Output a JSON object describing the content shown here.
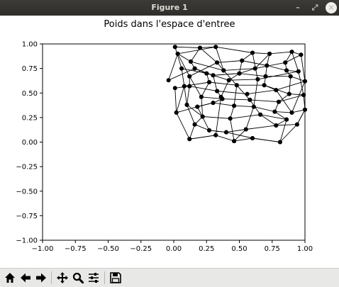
{
  "window": {
    "title": "Figure 1",
    "minimize_icon": "minimize-icon",
    "maximize_icon": "maximize-icon",
    "close_icon": "close-icon"
  },
  "toolbar": {
    "buttons": [
      {
        "name": "home-button",
        "icon": "home-icon"
      },
      {
        "name": "back-button",
        "icon": "arrow-left-icon"
      },
      {
        "name": "forward-button",
        "icon": "arrow-right-icon"
      },
      {
        "name": "pan-button",
        "icon": "move-icon"
      },
      {
        "name": "zoom-button",
        "icon": "zoom-icon"
      },
      {
        "name": "configure-subplots-button",
        "icon": "sliders-icon"
      },
      {
        "name": "save-button",
        "icon": "save-icon"
      }
    ]
  },
  "chart_data": {
    "type": "line",
    "title": "Poids dans l'espace d'entree",
    "xlabel": "",
    "ylabel": "",
    "xlim": [
      -1.0,
      1.0
    ],
    "ylim": [
      -1.0,
      1.0
    ],
    "xticks": [
      "−1.00",
      "−0.75",
      "−0.50",
      "−0.25",
      "0.00",
      "0.25",
      "0.50",
      "0.75",
      "1.00"
    ],
    "yticks": [
      "−1.00",
      "−0.75",
      "−0.50",
      "−0.25",
      "0.00",
      "0.25",
      "0.50",
      "0.75",
      "1.00"
    ],
    "grid": false,
    "line_color": "#000000",
    "marker_color": "#000000",
    "series": [
      {
        "points": [
          [
            0.01,
            0.97
          ],
          [
            0.2,
            0.96
          ],
          [
            0.32,
            0.97
          ],
          [
            0.6,
            0.91
          ],
          [
            0.73,
            0.9
          ],
          [
            0.9,
            0.92
          ],
          [
            0.97,
            0.89
          ],
          [
            0.85,
            0.81
          ],
          [
            0.62,
            0.75
          ],
          [
            0.38,
            0.73
          ],
          [
            0.13,
            0.82
          ],
          [
            0.03,
            0.9
          ],
          [
            -0.04,
            0.63
          ],
          [
            0.16,
            0.75
          ],
          [
            0.3,
            0.68
          ],
          [
            0.5,
            0.7
          ],
          [
            0.7,
            0.67
          ],
          [
            0.89,
            0.67
          ],
          [
            1.0,
            0.62
          ],
          [
            0.78,
            0.53
          ],
          [
            0.56,
            0.49
          ],
          [
            0.33,
            0.52
          ],
          [
            0.12,
            0.57
          ],
          [
            0.01,
            0.55
          ],
          [
            0.02,
            0.3
          ],
          [
            0.18,
            0.36
          ],
          [
            0.3,
            0.4
          ],
          [
            0.46,
            0.37
          ],
          [
            0.61,
            0.36
          ],
          [
            0.77,
            0.31
          ],
          [
            0.9,
            0.3
          ],
          [
            1.0,
            0.33
          ],
          [
            0.94,
            0.18
          ],
          [
            0.78,
            0.17
          ],
          [
            0.55,
            0.13
          ],
          [
            0.4,
            0.1
          ],
          [
            0.27,
            0.12
          ],
          [
            0.16,
            0.18
          ],
          [
            0.12,
            0.03
          ],
          [
            0.32,
            0.07
          ],
          [
            0.46,
            0.01
          ],
          [
            0.6,
            0.04
          ],
          [
            0.81,
            0.0
          ],
          [
            0.86,
            0.23
          ],
          [
            0.66,
            0.28
          ],
          [
            0.43,
            0.24
          ],
          [
            0.22,
            0.26
          ],
          [
            0.1,
            0.38
          ],
          [
            0.08,
            0.57
          ],
          [
            0.27,
            0.61
          ],
          [
            0.48,
            0.58
          ],
          [
            0.69,
            0.58
          ],
          [
            0.88,
            0.49
          ],
          [
            0.99,
            0.48
          ],
          [
            0.8,
            0.41
          ],
          [
            0.58,
            0.43
          ],
          [
            0.37,
            0.44
          ],
          [
            0.21,
            0.46
          ],
          [
            0.12,
            0.67
          ],
          [
            0.33,
            0.81
          ],
          [
            0.52,
            0.83
          ],
          [
            0.71,
            0.78
          ],
          [
            0.86,
            0.73
          ],
          [
            0.95,
            0.72
          ],
          [
            0.64,
            0.64
          ],
          [
            0.42,
            0.63
          ],
          [
            0.25,
            0.7
          ],
          [
            0.06,
            0.75
          ]
        ]
      },
      {
        "points": [
          [
            0.01,
            0.97
          ],
          [
            0.06,
            0.75
          ],
          [
            0.08,
            0.57
          ],
          [
            0.02,
            0.3
          ],
          [
            0.12,
            0.03
          ],
          [
            0.32,
            0.07
          ],
          [
            0.36,
            0.46
          ],
          [
            0.42,
            0.63
          ],
          [
            0.5,
            0.7
          ],
          [
            0.52,
            0.83
          ],
          [
            0.6,
            0.91
          ],
          [
            0.64,
            0.64
          ],
          [
            0.61,
            0.36
          ],
          [
            0.55,
            0.13
          ],
          [
            0.46,
            0.01
          ],
          [
            0.43,
            0.24
          ],
          [
            0.46,
            0.37
          ],
          [
            0.48,
            0.58
          ],
          [
            0.38,
            0.73
          ],
          [
            0.33,
            0.81
          ],
          [
            0.2,
            0.96
          ],
          [
            0.13,
            0.82
          ],
          [
            0.16,
            0.75
          ],
          [
            0.25,
            0.7
          ],
          [
            0.27,
            0.61
          ],
          [
            0.21,
            0.46
          ],
          [
            0.22,
            0.26
          ],
          [
            0.16,
            0.18
          ],
          [
            0.1,
            0.38
          ],
          [
            0.12,
            0.57
          ],
          [
            0.12,
            0.67
          ],
          [
            0.03,
            0.9
          ],
          [
            0.32,
            0.97
          ],
          [
            0.38,
            0.73
          ],
          [
            0.58,
            0.43
          ],
          [
            0.66,
            0.28
          ],
          [
            0.78,
            0.17
          ],
          [
            0.86,
            0.23
          ],
          [
            0.77,
            0.31
          ],
          [
            0.8,
            0.41
          ],
          [
            0.88,
            0.49
          ],
          [
            0.89,
            0.67
          ],
          [
            0.86,
            0.73
          ],
          [
            0.85,
            0.81
          ],
          [
            0.9,
            0.92
          ],
          [
            0.95,
            0.72
          ],
          [
            0.99,
            0.48
          ],
          [
            1.0,
            0.33
          ],
          [
            0.94,
            0.18
          ],
          [
            0.81,
            0.0
          ],
          [
            0.6,
            0.04
          ],
          [
            0.4,
            0.1
          ],
          [
            0.27,
            0.12
          ],
          [
            0.18,
            0.36
          ],
          [
            0.3,
            0.4
          ],
          [
            0.37,
            0.44
          ],
          [
            0.33,
            0.52
          ],
          [
            0.3,
            0.68
          ],
          [
            0.5,
            0.7
          ],
          [
            0.62,
            0.75
          ],
          [
            0.73,
            0.9
          ],
          [
            0.71,
            0.78
          ],
          [
            0.7,
            0.67
          ],
          [
            0.69,
            0.58
          ],
          [
            0.78,
            0.53
          ],
          [
            0.9,
            0.3
          ],
          [
            1.0,
            0.62
          ],
          [
            0.97,
            0.89
          ]
        ]
      }
    ]
  }
}
